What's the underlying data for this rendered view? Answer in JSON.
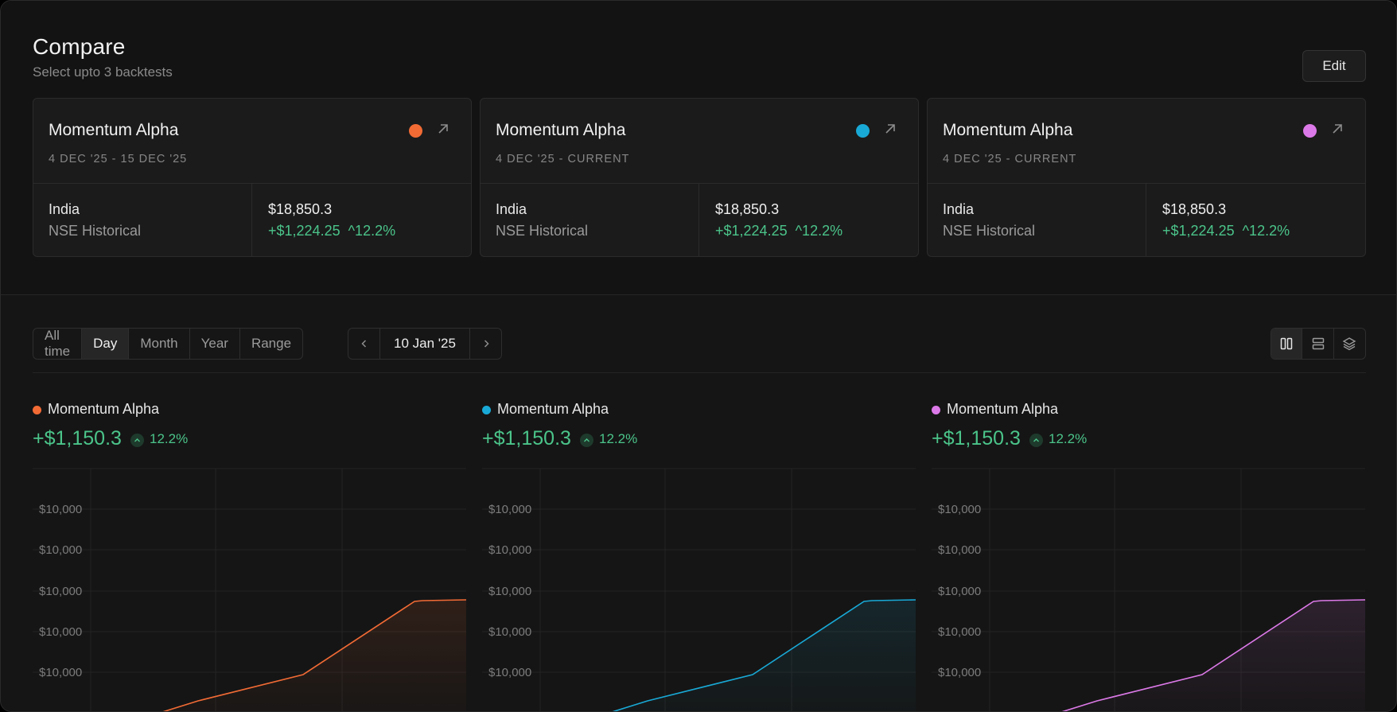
{
  "header": {
    "title": "Compare",
    "subtitle": "Select upto 3 backtests",
    "edit_label": "Edit"
  },
  "cards": [
    {
      "name": "Momentum Alpha",
      "date_range": "4 DEC '25 - 15 DEC '25",
      "country": "India",
      "exchange": "NSE Historical",
      "value": "$18,850.3",
      "gain": "+$1,224.25",
      "pct": "^12.2%",
      "color": "#f26b35"
    },
    {
      "name": "Momentum Alpha",
      "date_range": "4 DEC '25 - CURRENT",
      "country": "India",
      "exchange": "NSE Historical",
      "value": "$18,850.3",
      "gain": "+$1,224.25",
      "pct": "^12.2%",
      "color": "#19a9d6"
    },
    {
      "name": "Momentum Alpha",
      "date_range": "4 DEC '25 - CURRENT",
      "country": "India",
      "exchange": "NSE Historical",
      "value": "$18,850.3",
      "gain": "+$1,224.25",
      "pct": "^12.2%",
      "color": "#dc79e8"
    }
  ],
  "toolbar": {
    "ranges": [
      "All time",
      "Day",
      "Month",
      "Year",
      "Range"
    ],
    "active_range": "Day",
    "date": "10 Jan '25",
    "prev_icon": "chevron-left-icon",
    "next_icon": "chevron-right-icon",
    "views": [
      "columns-icon",
      "rows-icon",
      "layers-icon"
    ],
    "active_view": "columns-icon"
  },
  "panels": [
    {
      "name": "Momentum Alpha",
      "gain": "+$1,150.3",
      "pct": "12.2%",
      "color": "#f26b35"
    },
    {
      "name": "Momentum Alpha",
      "gain": "+$1,150.3",
      "pct": "12.2%",
      "color": "#19a9d6"
    },
    {
      "name": "Momentum Alpha",
      "gain": "+$1,150.3",
      "pct": "12.2%",
      "color": "#dc79e8"
    }
  ],
  "chart_data": {
    "type": "area",
    "y_tick_labels": [
      "$10,000",
      "$10,000",
      "$10,000",
      "$10,000",
      "$10,000"
    ],
    "note_shape": "line rises slowly then steeply toward the right edge"
  }
}
